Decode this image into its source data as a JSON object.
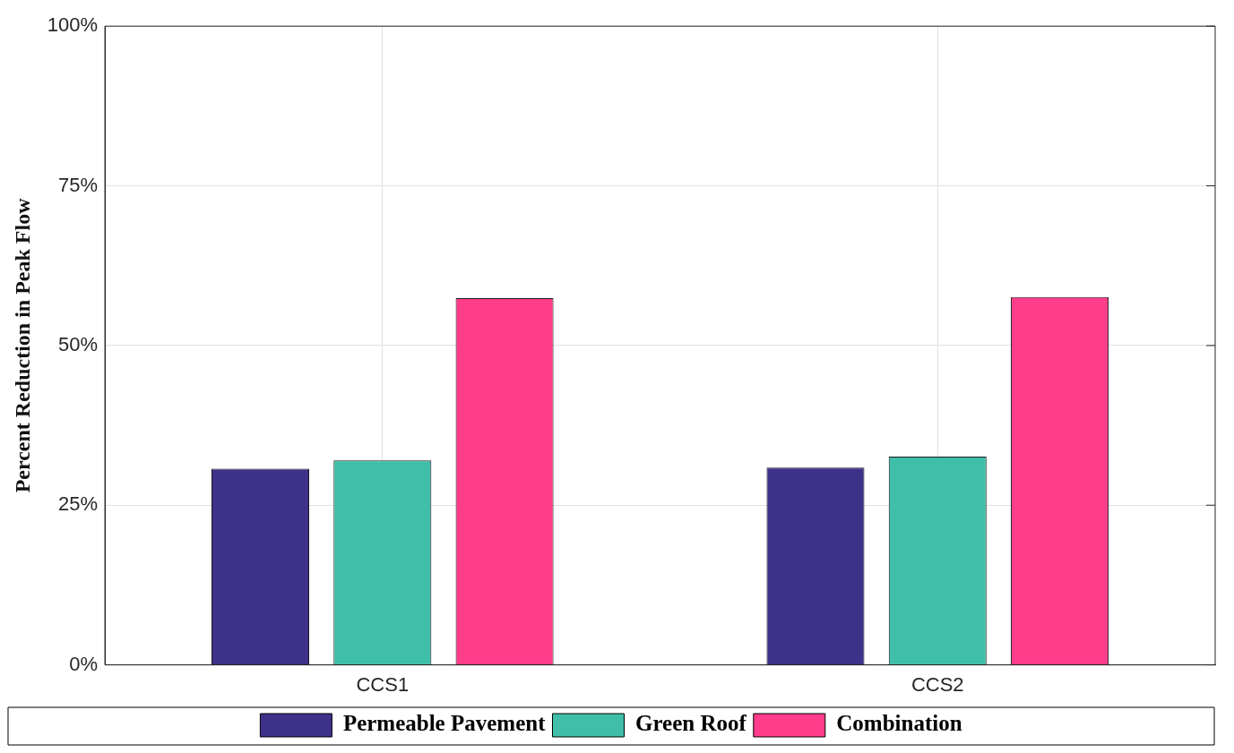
{
  "chart_data": {
    "type": "bar",
    "ylabel": "Percent Reduction in Peak Flow",
    "categories": [
      "CCS1",
      "CCS2"
    ],
    "series": [
      {
        "name": "Permeable Pavement",
        "color": "#3d318a",
        "values": [
          30.7,
          30.9
        ]
      },
      {
        "name": "Green Roof",
        "color": "#40bfa8",
        "values": [
          32.0,
          32.6
        ]
      },
      {
        "name": "Combination",
        "color": "#ff3d8a",
        "values": [
          57.4,
          57.6
        ]
      }
    ],
    "ylim": [
      0,
      100
    ],
    "yticks": [
      {
        "value": 0,
        "label": "0%"
      },
      {
        "value": 25,
        "label": "25%"
      },
      {
        "value": 50,
        "label": "50%"
      },
      {
        "value": 75,
        "label": "75%"
      },
      {
        "value": 100,
        "label": "100%"
      }
    ],
    "grid": true,
    "legend": "bottom"
  }
}
